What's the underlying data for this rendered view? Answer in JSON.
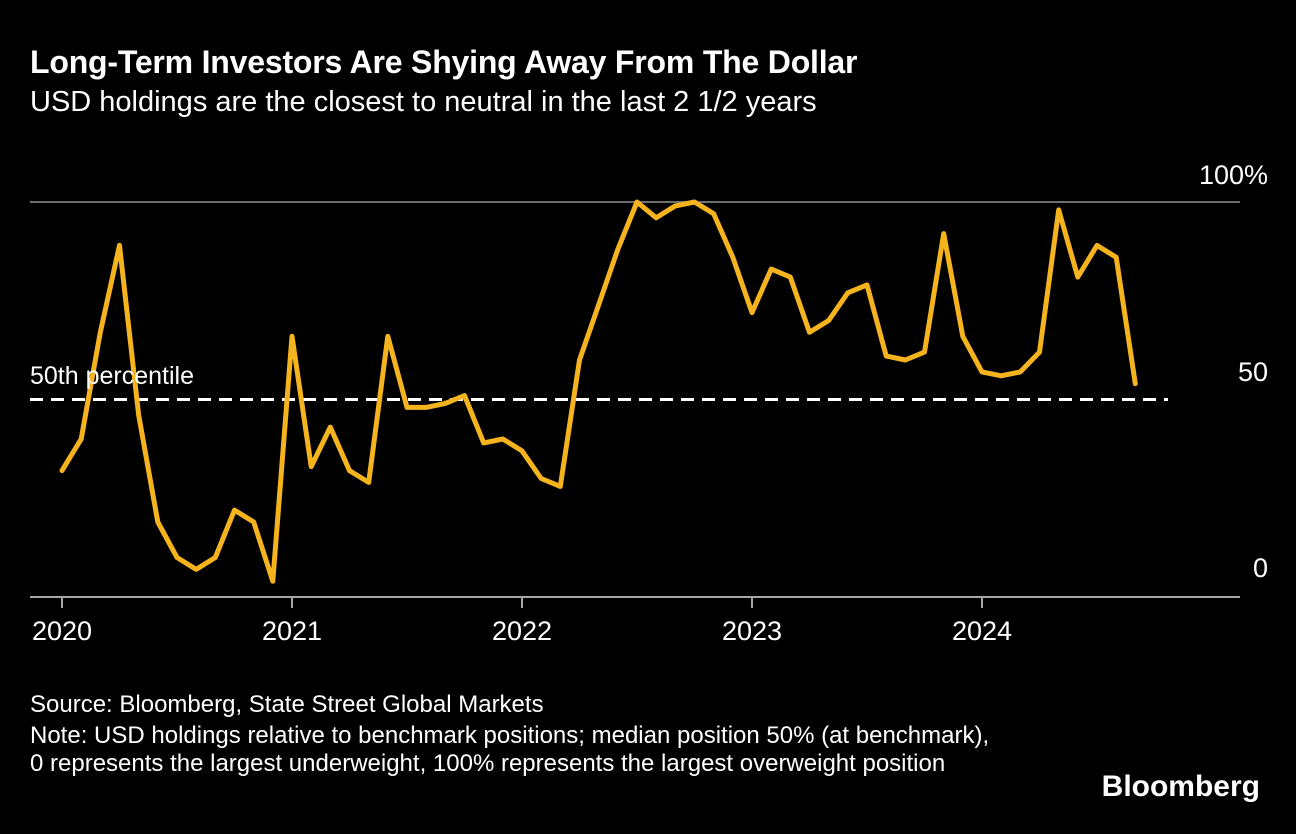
{
  "colors": {
    "background": "#000000",
    "text": "#FFFFFF",
    "line": "#F5B41E",
    "grid_top": "#6E6E6E",
    "axis": "#A6A6A6",
    "reference": "#FFFFFF"
  },
  "chart_data": {
    "type": "line",
    "title": "Long-Term Investors Are Shying Away From The Dollar",
    "subtitle": "USD holdings are the closest to neutral in the last 2 1/2 years",
    "series_name": "USD holdings percentile vs benchmark",
    "x": [
      "2020-01",
      "2020-02",
      "2020-03",
      "2020-04",
      "2020-05",
      "2020-06",
      "2020-07",
      "2020-08",
      "2020-09",
      "2020-10",
      "2020-11",
      "2020-12",
      "2021-01",
      "2021-02",
      "2021-03",
      "2021-04",
      "2021-05",
      "2021-06",
      "2021-07",
      "2021-08",
      "2021-09",
      "2021-10",
      "2021-11",
      "2021-12",
      "2022-01",
      "2022-02",
      "2022-03",
      "2022-04",
      "2022-05",
      "2022-06",
      "2022-07",
      "2022-08",
      "2022-09",
      "2022-10",
      "2022-11",
      "2022-12",
      "2023-01",
      "2023-02",
      "2023-03",
      "2023-04",
      "2023-05",
      "2023-06",
      "2023-07",
      "2023-08",
      "2023-09",
      "2023-10",
      "2023-11",
      "2023-12",
      "2024-01",
      "2024-02",
      "2024-03",
      "2024-04",
      "2024-05",
      "2024-06",
      "2024-07",
      "2024-08",
      "2024-09"
    ],
    "values": [
      32,
      40,
      67,
      89,
      46,
      19,
      10,
      7,
      10,
      22,
      19,
      4,
      66,
      33,
      43,
      32,
      29,
      66,
      48,
      48,
      49,
      51,
      39,
      40,
      37,
      30,
      28,
      60,
      74,
      88,
      100,
      96,
      99,
      100,
      97,
      86,
      72,
      83,
      81,
      67,
      70,
      77,
      79,
      61,
      60,
      62,
      92,
      66,
      57,
      56,
      57,
      62,
      98,
      81,
      89,
      86,
      54
    ],
    "ylim": [
      0,
      100
    ],
    "y_tick_labels": [
      "100%",
      "50",
      "0"
    ],
    "x_tick_labels": [
      "2020",
      "2021",
      "2022",
      "2023",
      "2024"
    ],
    "reference_line": {
      "value": 50,
      "label": "50th percentile",
      "style": "dashed"
    },
    "grid": "top and bottom horizontal lines only",
    "legend": "none"
  },
  "footer": {
    "source": "Source: Bloomberg, State Street Global Markets",
    "note": "Note: USD holdings relative to benchmark positions; median position 50% (at benchmark), 0 represents the largest underweight, 100% represents the largest overweight position",
    "brand": "Bloomberg"
  }
}
